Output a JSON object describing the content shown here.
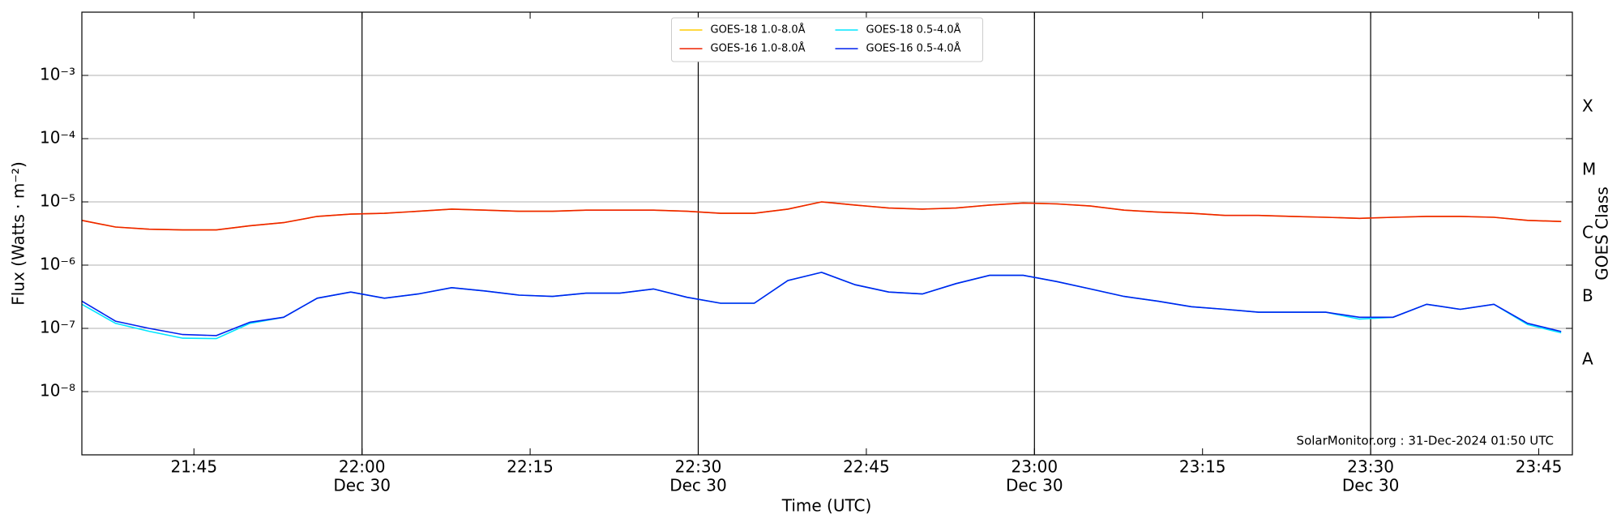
{
  "chart_data": {
    "type": "line",
    "xlabel": "Time (UTC)",
    "ylabel": "Flux (Watts · m⁻²)",
    "y2label": "GOES Class",
    "footer": "SolarMonitor.org : 31-Dec-2024 01:50 UTC",
    "log_y": true,
    "grid": true,
    "legend_position": "top",
    "legend_columns": 2,
    "xlim": [
      "21:35",
      "23:48"
    ],
    "xticks": [
      "21:45",
      {
        "value": "22:00",
        "label": [
          "22:00",
          "Dec 30"
        ]
      },
      "22:15",
      {
        "value": "22:30",
        "label": [
          "22:30",
          "Dec 30"
        ]
      },
      "22:45",
      {
        "value": "23:00",
        "label": [
          "23:00",
          "Dec 30"
        ]
      },
      "23:15",
      {
        "value": "23:30",
        "label": [
          "23:30",
          "Dec 30"
        ]
      },
      "23:45"
    ],
    "ylim": [
      1e-09,
      0.01
    ],
    "yticks": [
      {
        "value": 1e-08,
        "label": "10⁻⁸"
      },
      {
        "value": 1e-07,
        "label": "10⁻⁷"
      },
      {
        "value": 1e-06,
        "label": "10⁻⁶"
      },
      {
        "value": 1e-05,
        "label": "10⁻⁵"
      },
      {
        "value": 0.0001,
        "label": "10⁻⁴"
      },
      {
        "value": 0.001,
        "label": "10⁻³"
      }
    ],
    "y2lim": [
      1e-09,
      0.01
    ],
    "y2ticks": [
      {
        "value": 3.16e-08,
        "label": "A"
      },
      {
        "value": 3.16e-07,
        "label": "B"
      },
      {
        "value": 3.16e-06,
        "label": "C"
      },
      {
        "value": 3.16e-05,
        "label": "M"
      },
      {
        "value": 0.000316,
        "label": "X"
      }
    ],
    "x": [
      "21:35",
      "21:38",
      "21:41",
      "21:44",
      "21:47",
      "21:50",
      "21:53",
      "21:56",
      "21:59",
      "22:02",
      "22:05",
      "22:08",
      "22:11",
      "22:14",
      "22:17",
      "22:20",
      "22:23",
      "22:26",
      "22:29",
      "22:32",
      "22:35",
      "22:38",
      "22:41",
      "22:44",
      "22:47",
      "22:50",
      "22:53",
      "22:56",
      "22:59",
      "23:02",
      "23:05",
      "23:08",
      "23:11",
      "23:14",
      "23:17",
      "23:20",
      "23:23",
      "23:26",
      "23:29",
      "23:32",
      "23:35",
      "23:38",
      "23:41",
      "23:44",
      "23:47"
    ],
    "series": [
      {
        "name": "GOES-18 1.0-8.0Å",
        "color": "#ffcc00",
        "values": [
          5.1e-06,
          4e-06,
          3.7e-06,
          3.6e-06,
          3.6e-06,
          4.2e-06,
          4.7e-06,
          5.9e-06,
          6.4e-06,
          6.6e-06,
          7.1e-06,
          7.7e-06,
          7.4e-06,
          7.1e-06,
          7.1e-06,
          7.4e-06,
          7.4e-06,
          7.4e-06,
          7.1e-06,
          6.6e-06,
          6.6e-06,
          7.7e-06,
          1e-05,
          8.9e-06,
          8e-06,
          7.7e-06,
          8e-06,
          8.9e-06,
          9.6e-06,
          9.3e-06,
          8.6e-06,
          7.4e-06,
          6.9e-06,
          6.6e-06,
          6.1e-06,
          6.1e-06,
          5.9e-06,
          5.7e-06,
          5.5e-06,
          5.7e-06,
          5.9e-06,
          5.9e-06,
          5.7e-06,
          5.1e-06,
          4.9e-06
        ]
      },
      {
        "name": "GOES-16 1.0-8.0Å",
        "color": "#ee2200",
        "values": [
          5.1e-06,
          4e-06,
          3.7e-06,
          3.6e-06,
          3.6e-06,
          4.2e-06,
          4.7e-06,
          5.9e-06,
          6.4e-06,
          6.6e-06,
          7.1e-06,
          7.7e-06,
          7.4e-06,
          7.1e-06,
          7.1e-06,
          7.4e-06,
          7.4e-06,
          7.4e-06,
          7.1e-06,
          6.6e-06,
          6.6e-06,
          7.7e-06,
          1e-05,
          8.9e-06,
          8e-06,
          7.7e-06,
          8e-06,
          8.9e-06,
          9.6e-06,
          9.3e-06,
          8.6e-06,
          7.4e-06,
          6.9e-06,
          6.6e-06,
          6.1e-06,
          6.1e-06,
          5.9e-06,
          5.7e-06,
          5.5e-06,
          5.7e-06,
          5.9e-06,
          5.9e-06,
          5.7e-06,
          5.1e-06,
          4.9e-06
        ]
      },
      {
        "name": "GOES-18 0.5-4.0Å",
        "color": "#00e5ff",
        "values": [
          2.4e-07,
          1.2e-07,
          9e-08,
          7e-08,
          6.9e-08,
          1.2e-07,
          1.5e-07,
          3e-07,
          3.75e-07,
          3e-07,
          3.5e-07,
          4.4e-07,
          3.9e-07,
          3.35e-07,
          3.2e-07,
          3.6e-07,
          3.6e-07,
          4.2e-07,
          3.1e-07,
          2.5e-07,
          2.5e-07,
          5.7e-07,
          7.7e-07,
          4.9e-07,
          3.75e-07,
          3.5e-07,
          5.1e-07,
          6.9e-07,
          6.9e-07,
          5.5e-07,
          4.2e-07,
          3.2e-07,
          2.7e-07,
          2.2e-07,
          2e-07,
          1.8e-07,
          1.8e-07,
          1.8e-07,
          1.4e-07,
          1.5e-07,
          2.4e-07,
          2e-07,
          2.4e-07,
          1.15e-07,
          8.5e-08
        ]
      },
      {
        "name": "GOES-16 0.5-4.0Å",
        "color": "#0022ee",
        "values": [
          2.7e-07,
          1.3e-07,
          1e-07,
          8e-08,
          7.7e-08,
          1.25e-07,
          1.5e-07,
          3e-07,
          3.75e-07,
          3e-07,
          3.5e-07,
          4.4e-07,
          3.9e-07,
          3.35e-07,
          3.2e-07,
          3.6e-07,
          3.6e-07,
          4.2e-07,
          3.1e-07,
          2.5e-07,
          2.5e-07,
          5.7e-07,
          7.7e-07,
          4.9e-07,
          3.75e-07,
          3.5e-07,
          5.1e-07,
          6.9e-07,
          6.9e-07,
          5.5e-07,
          4.2e-07,
          3.2e-07,
          2.7e-07,
          2.2e-07,
          2e-07,
          1.8e-07,
          1.8e-07,
          1.8e-07,
          1.5e-07,
          1.5e-07,
          2.4e-07,
          2e-07,
          2.4e-07,
          1.2e-07,
          8.9e-08
        ]
      }
    ]
  }
}
